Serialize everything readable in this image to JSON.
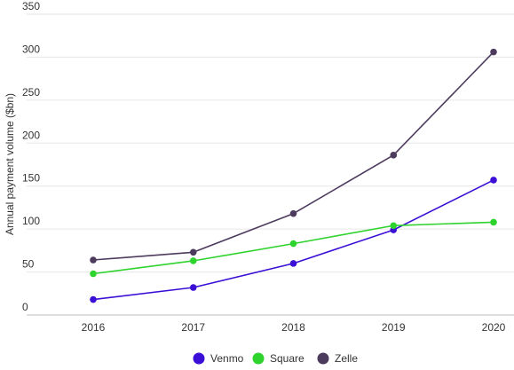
{
  "chart_data": {
    "type": "line",
    "title": "",
    "xlabel": "",
    "ylabel": "Annual payment volume ($bn)",
    "x": [
      "2016",
      "2017",
      "2018",
      "2019",
      "2020"
    ],
    "yticks": [
      "0",
      "50",
      "100",
      "150",
      "200",
      "250",
      "300",
      "350"
    ],
    "ylim": [
      0,
      350
    ],
    "grid": true,
    "legend_position": "bottom-center",
    "series": [
      {
        "name": "Venmo",
        "color": "#3b0fd6",
        "values": [
          18,
          32,
          60,
          99,
          157
        ]
      },
      {
        "name": "Square",
        "color": "#2ed32e",
        "values": [
          48,
          63,
          83,
          104,
          108
        ]
      },
      {
        "name": "Zelle",
        "color": "#4d3b5e",
        "values": [
          64,
          73,
          118,
          186,
          306
        ]
      }
    ]
  }
}
